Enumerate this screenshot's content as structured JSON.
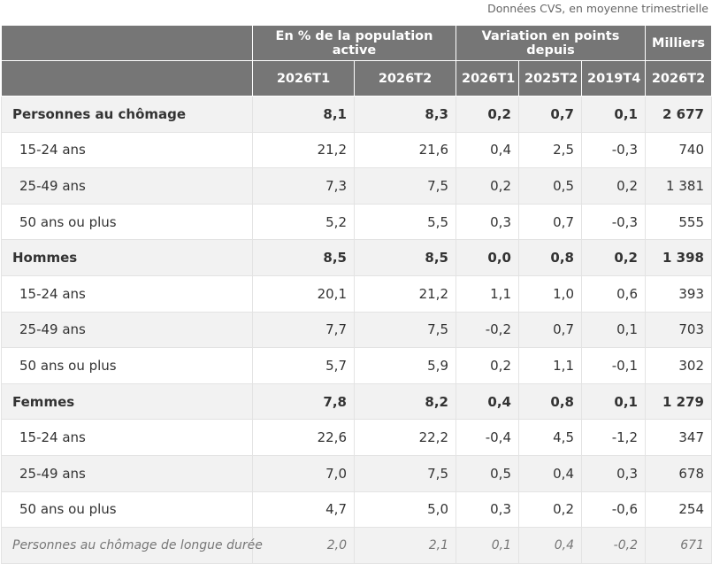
{
  "note": "Données CVS, en moyenne trimestrielle",
  "header": {
    "group1": "En % de la population active",
    "group2": "Variation en points depuis",
    "group3": "Milliers",
    "cols": [
      "2026T1",
      "2026T2",
      "2026T1",
      "2025T2",
      "2019T4",
      "2026T2"
    ]
  },
  "rows": [
    {
      "label": "Personnes au chômage",
      "values": [
        "8,1",
        "8,3",
        "0,2",
        "0,7",
        "0,1",
        "2 677"
      ]
    },
    {
      "label": "15-24 ans",
      "values": [
        "21,2",
        "21,6",
        "0,4",
        "2,5",
        "-0,3",
        "740"
      ]
    },
    {
      "label": "25-49 ans",
      "values": [
        "7,3",
        "7,5",
        "0,2",
        "0,5",
        "0,2",
        "1 381"
      ]
    },
    {
      "label": "50 ans ou plus",
      "values": [
        "5,2",
        "5,5",
        "0,3",
        "0,7",
        "-0,3",
        "555"
      ]
    },
    {
      "label": "Hommes",
      "values": [
        "8,5",
        "8,5",
        "0,0",
        "0,8",
        "0,2",
        "1 398"
      ]
    },
    {
      "label": "15-24 ans",
      "values": [
        "20,1",
        "21,2",
        "1,1",
        "1,0",
        "0,6",
        "393"
      ]
    },
    {
      "label": "25-49 ans",
      "values": [
        "7,7",
        "7,5",
        "-0,2",
        "0,7",
        "0,1",
        "703"
      ]
    },
    {
      "label": "50 ans ou plus",
      "values": [
        "5,7",
        "5,9",
        "0,2",
        "1,1",
        "-0,1",
        "302"
      ]
    },
    {
      "label": "Femmes",
      "values": [
        "7,8",
        "8,2",
        "0,4",
        "0,8",
        "0,1",
        "1 279"
      ]
    },
    {
      "label": "15-24 ans",
      "values": [
        "22,6",
        "22,2",
        "-0,4",
        "4,5",
        "-1,2",
        "347"
      ]
    },
    {
      "label": "25-49 ans",
      "values": [
        "7,0",
        "7,5",
        "0,5",
        "0,4",
        "0,3",
        "678"
      ]
    },
    {
      "label": "50 ans ou plus",
      "values": [
        "4,7",
        "5,0",
        "0,3",
        "0,2",
        "-0,6",
        "254"
      ]
    },
    {
      "label": "Personnes au chômage de longue durée",
      "values": [
        "2,0",
        "2,1",
        "0,1",
        "0,4",
        "-0,2",
        "671"
      ]
    }
  ]
}
